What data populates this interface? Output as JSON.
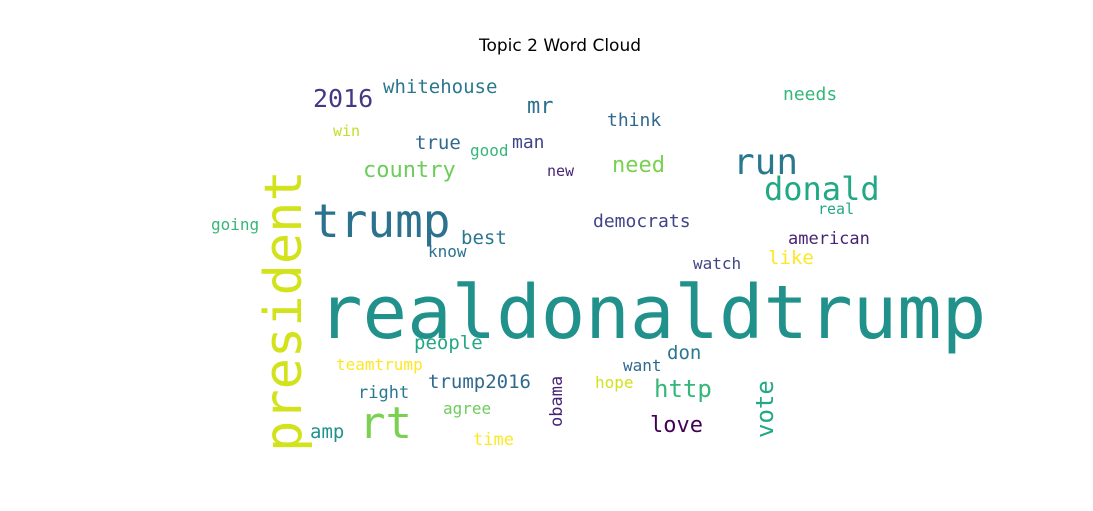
{
  "title": "Topic 2 Word Cloud",
  "words": [
    {
      "text": "realdonaldtrump",
      "color": "#21918c"
    },
    {
      "text": "president",
      "color": "#d2e21b"
    },
    {
      "text": "trump",
      "color": "#2c728e"
    },
    {
      "text": "rt",
      "color": "#7ad151"
    },
    {
      "text": "run",
      "color": "#2a788e"
    },
    {
      "text": "donald",
      "color": "#22a884"
    },
    {
      "text": "2016",
      "color": "#443983"
    },
    {
      "text": "whitehouse",
      "color": "#2a788e"
    },
    {
      "text": "mr",
      "color": "#2c728e"
    },
    {
      "text": "needs",
      "color": "#35b779"
    },
    {
      "text": "win",
      "color": "#bddf26"
    },
    {
      "text": "true",
      "color": "#31688e"
    },
    {
      "text": "good",
      "color": "#35b779"
    },
    {
      "text": "man",
      "color": "#414487"
    },
    {
      "text": "think",
      "color": "#31688e"
    },
    {
      "text": "country",
      "color": "#6ccd5a"
    },
    {
      "text": "need",
      "color": "#7ad151"
    },
    {
      "text": "new",
      "color": "#482475"
    },
    {
      "text": "real",
      "color": "#22a884"
    },
    {
      "text": "going",
      "color": "#35b779"
    },
    {
      "text": "democrats",
      "color": "#414487"
    },
    {
      "text": "best",
      "color": "#2a788e"
    },
    {
      "text": "american",
      "color": "#482475"
    },
    {
      "text": "know",
      "color": "#2c728e"
    },
    {
      "text": "watch",
      "color": "#414487"
    },
    {
      "text": "like",
      "color": "#fde725"
    },
    {
      "text": "people",
      "color": "#22a884"
    },
    {
      "text": "don",
      "color": "#2a788e"
    },
    {
      "text": "teamtrump",
      "color": "#fde725"
    },
    {
      "text": "want",
      "color": "#31688e"
    },
    {
      "text": "right",
      "color": "#2a788e"
    },
    {
      "text": "trump2016",
      "color": "#31688e"
    },
    {
      "text": "hope",
      "color": "#d2e21b"
    },
    {
      "text": "http",
      "color": "#35b779"
    },
    {
      "text": "vote",
      "color": "#22a884"
    },
    {
      "text": "agree",
      "color": "#6ccd5a"
    },
    {
      "text": "obama",
      "color": "#482475"
    },
    {
      "text": "amp",
      "color": "#21918c"
    },
    {
      "text": "love",
      "color": "#440154"
    },
    {
      "text": "time",
      "color": "#fde725"
    }
  ]
}
